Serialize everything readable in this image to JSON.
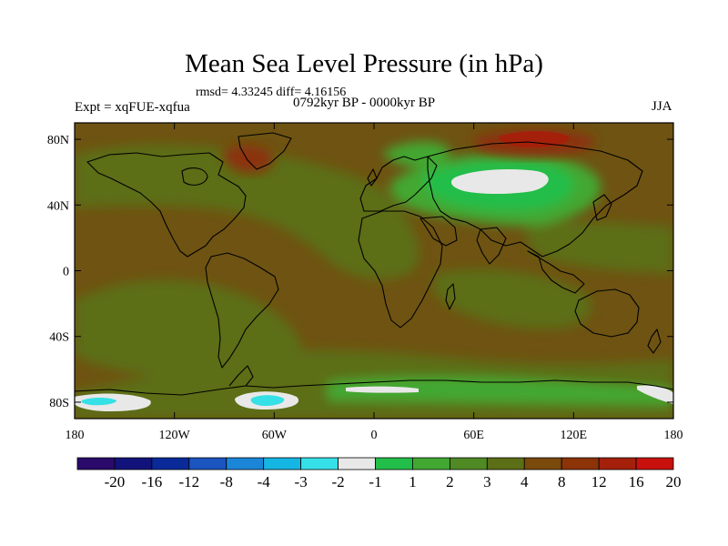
{
  "title": "Mean Sea Level Pressure (in hPa)",
  "stats": "rmsd= 4.33245 diff= 4.16156",
  "experiment": "Expt = xqFUE-xqfua",
  "period": "0792kyr BP - 0000kyr BP",
  "season": "JJA",
  "lat_ticks": [
    {
      "label": "80N",
      "value": 80
    },
    {
      "label": "40N",
      "value": 40
    },
    {
      "label": "0",
      "value": 0
    },
    {
      "label": "40S",
      "value": -40
    },
    {
      "label": "80S",
      "value": -80
    }
  ],
  "lon_ticks": [
    {
      "label": "180",
      "value": -180
    },
    {
      "label": "120W",
      "value": -120
    },
    {
      "label": "60W",
      "value": -60
    },
    {
      "label": "0",
      "value": 0
    },
    {
      "label": "60E",
      "value": 60
    },
    {
      "label": "120E",
      "value": 120
    },
    {
      "label": "180",
      "value": 180
    }
  ],
  "map_extent": {
    "lon": [
      -180,
      180
    ],
    "lat": [
      -90,
      90
    ]
  },
  "colorbar": {
    "colors": [
      "#2a0a6a",
      "#12137a",
      "#0a2a9a",
      "#1a55c0",
      "#1b86d8",
      "#16b6e4",
      "#35e0e6",
      "#e8e8e8",
      "#22be4a",
      "#42a832",
      "#4f8a24",
      "#5c6e16",
      "#7a4a0c",
      "#8c3308",
      "#a4200a",
      "#c8110c"
    ],
    "labels": [
      "-20",
      "-16",
      "-12",
      "-8",
      "-4",
      "-3",
      "-2",
      "-1",
      "1",
      "2",
      "3",
      "4",
      "8",
      "12",
      "16",
      "20"
    ]
  },
  "field_colors": {
    "background": "#6e5312",
    "level_3_4": "#5c6e16",
    "level_2_3": "#42a832",
    "level_1_2": "#22be4a",
    "level_m1_1": "#e8e8e8",
    "level_m2_m1": "#35e0e6",
    "level_4_8": "#7a4a0c",
    "level_8_12": "#8c3308",
    "level_12_16": "#a4200a",
    "level_16_20": "#c8110c"
  }
}
